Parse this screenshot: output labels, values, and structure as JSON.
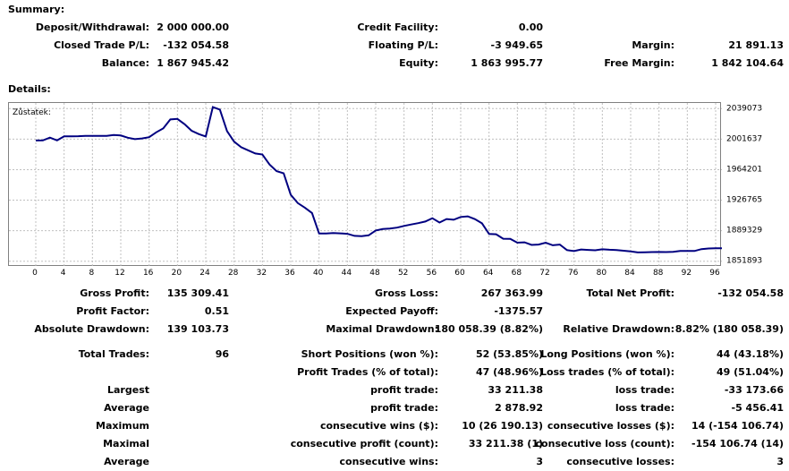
{
  "summary_title": "Summary:",
  "details_title": "Details:",
  "summary": {
    "deposit_label": "Deposit/Withdrawal:",
    "deposit_value": "2 000 000.00",
    "credit_label": "Credit Facility:",
    "credit_value": "0.00",
    "closed_label": "Closed Trade P/L:",
    "closed_value": "-132 054.58",
    "floating_label": "Floating P/L:",
    "floating_value": "-3 949.65",
    "margin_label": "Margin:",
    "margin_value": "21 891.13",
    "balance_label": "Balance:",
    "balance_value": "1 867 945.42",
    "equity_label": "Equity:",
    "equity_value": "1 863 995.77",
    "free_margin_label": "Free Margin:",
    "free_margin_value": "1 842 104.64"
  },
  "chart_data": {
    "type": "line",
    "legend_label": "Zůstatek:",
    "line_color": "#000080",
    "grid": true,
    "grid_color": "#c0c0c0",
    "xlim": [
      0,
      98
    ],
    "ylim": [
      1845000,
      2046000
    ],
    "x_ticks": [
      0,
      4,
      8,
      12,
      16,
      20,
      24,
      28,
      32,
      36,
      40,
      44,
      48,
      52,
      56,
      60,
      64,
      68,
      72,
      76,
      80,
      84,
      88,
      92,
      96
    ],
    "y_ticks": [
      1851893,
      1889329,
      1926765,
      1964201,
      2001637,
      2039073
    ],
    "series": [
      {
        "x": [
          0,
          1,
          2,
          3,
          4,
          5,
          6,
          7,
          8,
          9,
          10,
          11,
          12,
          13,
          14,
          15,
          16,
          17,
          18,
          19,
          20,
          21,
          22,
          23,
          24,
          25,
          26,
          27,
          28,
          29,
          30,
          31,
          32,
          33,
          34,
          35,
          36,
          37,
          38,
          39,
          40,
          41,
          42,
          43,
          44,
          45,
          46,
          47,
          48,
          49,
          50,
          51,
          52,
          53,
          54,
          55,
          56,
          57,
          58,
          59,
          60,
          61,
          62,
          63,
          64,
          65,
          66,
          67,
          68,
          69,
          70,
          71,
          72,
          73,
          74,
          75,
          76,
          77,
          78,
          79,
          80,
          81,
          82,
          83,
          84,
          85,
          86,
          87,
          88,
          89,
          90,
          91,
          92,
          93,
          94,
          95,
          96,
          97
        ],
        "values": [
          2000000,
          2000100,
          2003500,
          2000100,
          2005000,
          2005100,
          2005300,
          2005600,
          2005600,
          2005600,
          2005700,
          2006700,
          2006100,
          2003400,
          2001600,
          2002500,
          2004000,
          2010000,
          2014800,
          2025800,
          2026500,
          2020000,
          2012000,
          2007900,
          2004900,
          2041000,
          2037900,
          2011500,
          1998600,
          1991700,
          1987900,
          1984100,
          1982800,
          1970500,
          1962400,
          1959800,
          1933400,
          1923200,
          1917600,
          1911000,
          1885900,
          1885900,
          1886400,
          1886100,
          1885500,
          1883000,
          1882700,
          1883700,
          1889600,
          1891400,
          1891900,
          1893100,
          1895200,
          1896900,
          1898600,
          1900600,
          1904600,
          1899400,
          1903700,
          1902800,
          1906200,
          1906900,
          1903500,
          1898400,
          1885300,
          1885000,
          1879500,
          1879300,
          1874700,
          1875100,
          1871900,
          1872300,
          1874700,
          1871500,
          1872300,
          1865500,
          1864300,
          1866300,
          1865800,
          1865300,
          1866500,
          1866000,
          1865700,
          1864800,
          1863900,
          1862700,
          1862900,
          1863100,
          1863200,
          1863100,
          1863500,
          1864500,
          1864600,
          1864400,
          1866700,
          1867500,
          1867700,
          1867900
        ]
      }
    ]
  },
  "details": {
    "gross_profit_label": "Gross Profit:",
    "gross_profit_value": "135 309.41",
    "gross_loss_label": "Gross Loss:",
    "gross_loss_value": "267 363.99",
    "total_net_label": "Total Net Profit:",
    "total_net_value": "-132 054.58",
    "profit_factor_label": "Profit Factor:",
    "profit_factor_value": "0.51",
    "expected_payoff_label": "Expected Payoff:",
    "expected_payoff_value": "-1375.57",
    "abs_dd_label": "Absolute Drawdown:",
    "abs_dd_value": "139 103.73",
    "max_dd_label": "Maximal Drawdown:",
    "max_dd_value": "180 058.39 (8.82%)",
    "rel_dd_label": "Relative Drawdown:",
    "rel_dd_value": "8.82% (180 058.39)",
    "total_trades_label": "Total Trades:",
    "total_trades_value": "96",
    "short_label": "Short Positions (won %):",
    "short_value": "52 (53.85%)",
    "long_label": "Long Positions (won %):",
    "long_value": "44 (43.18%)",
    "profit_trades_label": "Profit Trades (% of total):",
    "profit_trades_value": "47 (48.96%)",
    "loss_trades_label": "Loss trades (% of total):",
    "loss_trades_value": "49 (51.04%)",
    "largest_label": "Largest",
    "largest_profit_label": "profit trade:",
    "largest_profit_value": "33 211.38",
    "largest_loss_label": "loss trade:",
    "largest_loss_value": "-33 173.66",
    "average_label": "Average",
    "average_profit_label": "profit trade:",
    "average_profit_value": "2 878.92",
    "average_loss_label": "loss trade:",
    "average_loss_value": "-5 456.41",
    "maximum_label": "Maximum",
    "max_wins_label": "consecutive wins ($):",
    "max_wins_value": "10 (26 190.13)",
    "max_losses_label": "consecutive losses ($):",
    "max_losses_value": "14 (-154 106.74)",
    "maximal_label": "Maximal",
    "max_profit_label": "consecutive profit (count):",
    "max_profit_value": "33 211.38 (1)",
    "max_loss_label": "consecutive loss (count):",
    "max_loss_value": "-154 106.74 (14)",
    "average2_label": "Average",
    "avg_wins_label": "consecutive wins:",
    "avg_wins_value": "3",
    "avg_losses_label": "consecutive losses:",
    "avg_losses_value": "3"
  }
}
